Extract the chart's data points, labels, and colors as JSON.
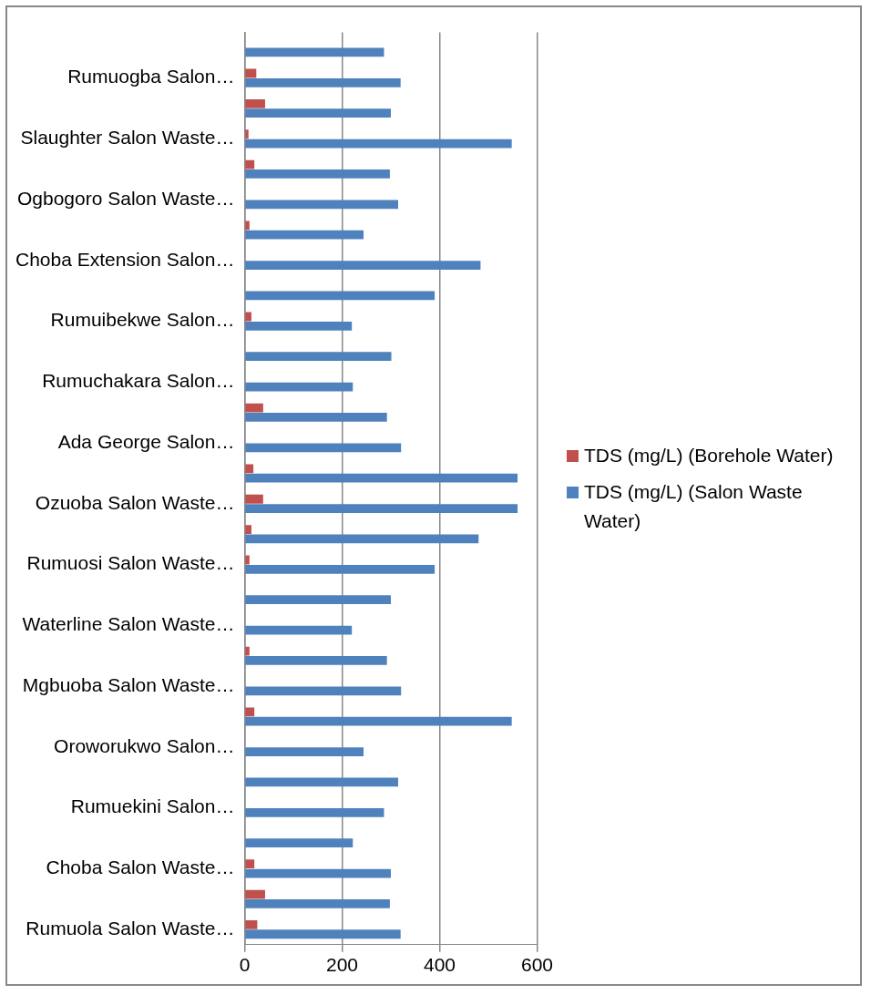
{
  "chart_data": {
    "type": "bar",
    "orientation": "horizontal",
    "categories": [
      null,
      "Rumuogba Salon…",
      null,
      "Slaughter Salon Waste…",
      null,
      "Ogbogoro Salon Waste…",
      null,
      "Choba Extension Salon…",
      null,
      "Rumuibekwe Salon…",
      null,
      "Rumuchakara Salon…",
      null,
      "Ada George Salon…",
      null,
      "Ozuoba Salon Waste…",
      null,
      "Rumuosi Salon Waste…",
      null,
      "Waterline Salon Waste…",
      null,
      "Mgbuoba Salon Waste…",
      null,
      "Oroworukwo Salon…",
      null,
      "Rumuekini Salon…",
      null,
      "Choba Salon Waste…",
      null,
      "Rumuola Salon Waste…"
    ],
    "series": [
      {
        "name": "TDS (mg/L) (Borehole Water)",
        "color": "#c0504d",
        "values": [
          0,
          24,
          42,
          8,
          20,
          0,
          10,
          0,
          0,
          14,
          0,
          0,
          38,
          0,
          18,
          38,
          14,
          10,
          0,
          0,
          10,
          0,
          20,
          0,
          0,
          0,
          0,
          20,
          42,
          26
        ]
      },
      {
        "name": "TDS (mg/L) (Salon Waste Water)",
        "color": "#4f81bd",
        "values": [
          286,
          320,
          300,
          548,
          298,
          315,
          244,
          484,
          390,
          220,
          301,
          222,
          292,
          321,
          560,
          560,
          480,
          390,
          300,
          220,
          292,
          321,
          548,
          244,
          315,
          286,
          222,
          300,
          298,
          320
        ]
      }
    ],
    "xlim": [
      0,
      600
    ],
    "xticks": [
      0,
      200,
      400,
      600
    ],
    "grid": "x",
    "legend": "right"
  }
}
